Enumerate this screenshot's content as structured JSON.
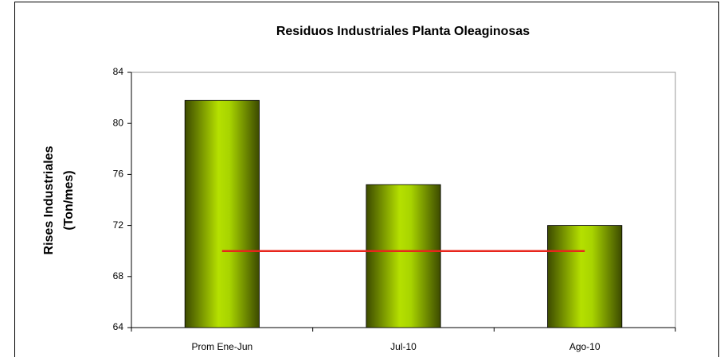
{
  "chart_data": {
    "type": "bar",
    "title": "Residuos Industriales Planta Oleaginosas",
    "ylabel": [
      "Rises Industriales",
      "(Ton/mes)"
    ],
    "categories": [
      "Prom Ene-Jun",
      "Jul-10",
      "Ago-10"
    ],
    "series": [
      {
        "type": "bar",
        "color": "#8fb300",
        "values": [
          81.8,
          75.2,
          72
        ]
      },
      {
        "type": "line",
        "color": "#e8261c",
        "values": [
          70,
          70,
          70
        ]
      }
    ],
    "ylim": [
      64,
      84
    ],
    "yticks": [
      64,
      68,
      72,
      76,
      80,
      84
    ],
    "grid": false
  }
}
